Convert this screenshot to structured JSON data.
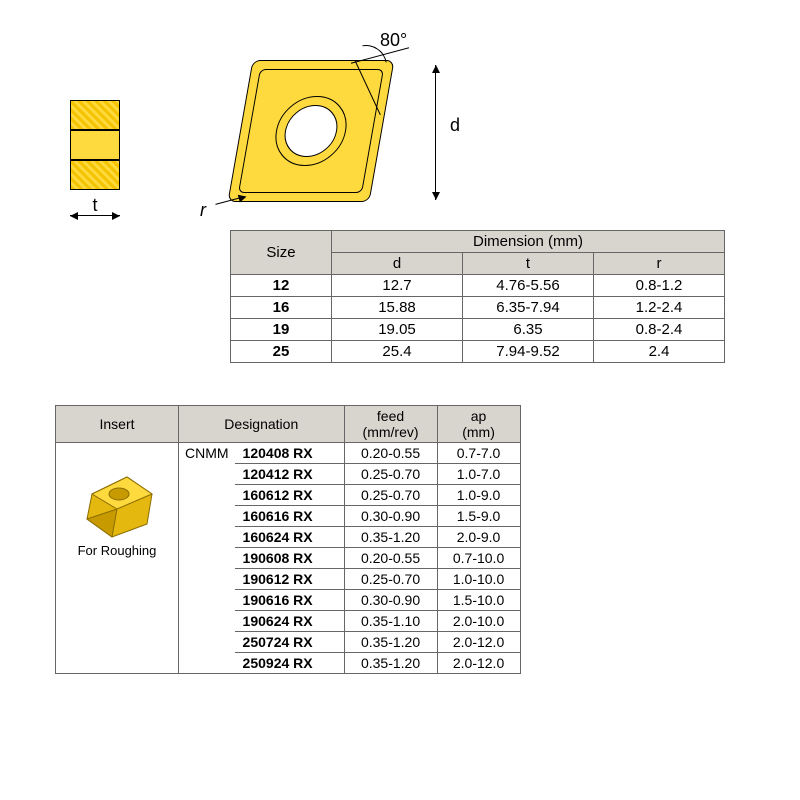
{
  "diagram": {
    "angle_label": "80°",
    "d_label": "d",
    "t_label": "t",
    "r_label": "r",
    "colors": {
      "insert_fill": "#ffda3e",
      "insert_stroke": "#000000",
      "hatch_dark": "#f5c400",
      "table_header_bg": "#d8d4ce",
      "border": "#666666",
      "background": "#ffffff"
    }
  },
  "size_table": {
    "header_size": "Size",
    "header_dimension": "Dimension (mm)",
    "sub_headers": [
      "d",
      "t",
      "r"
    ],
    "rows": [
      {
        "size": "12",
        "d": "12.7",
        "t": "4.76-5.56",
        "r": "0.8-1.2"
      },
      {
        "size": "16",
        "d": "15.88",
        "t": "6.35-7.94",
        "r": "1.2-2.4"
      },
      {
        "size": "19",
        "d": "19.05",
        "t": "6.35",
        "r": "0.8-2.4"
      },
      {
        "size": "25",
        "d": "25.4",
        "t": "7.94-9.52",
        "r": "2.4"
      }
    ]
  },
  "desig_table": {
    "header_insert": "Insert",
    "header_designation": "Designation",
    "header_feed": "feed\n(mm/rev)",
    "header_ap": "ap\n(mm)",
    "insert_label": "For Roughing",
    "prefix": "CNMM",
    "rows": [
      {
        "code": "120408 RX",
        "feed": "0.20-0.55",
        "ap": "0.7-7.0"
      },
      {
        "code": "120412 RX",
        "feed": "0.25-0.70",
        "ap": "1.0-7.0"
      },
      {
        "code": "160612 RX",
        "feed": "0.25-0.70",
        "ap": "1.0-9.0"
      },
      {
        "code": "160616 RX",
        "feed": "0.30-0.90",
        "ap": "1.5-9.0"
      },
      {
        "code": "160624 RX",
        "feed": "0.35-1.20",
        "ap": "2.0-9.0"
      },
      {
        "code": "190608 RX",
        "feed": "0.20-0.55",
        "ap": "0.7-10.0"
      },
      {
        "code": "190612 RX",
        "feed": "0.25-0.70",
        "ap": "1.0-10.0"
      },
      {
        "code": "190616 RX",
        "feed": "0.30-0.90",
        "ap": "1.5-10.0"
      },
      {
        "code": "190624 RX",
        "feed": "0.35-1.10",
        "ap": "2.0-10.0"
      },
      {
        "code": "250724 RX",
        "feed": "0.35-1.20",
        "ap": "2.0-12.0"
      },
      {
        "code": "250924 RX",
        "feed": "0.35-1.20",
        "ap": "2.0-12.0"
      }
    ]
  }
}
